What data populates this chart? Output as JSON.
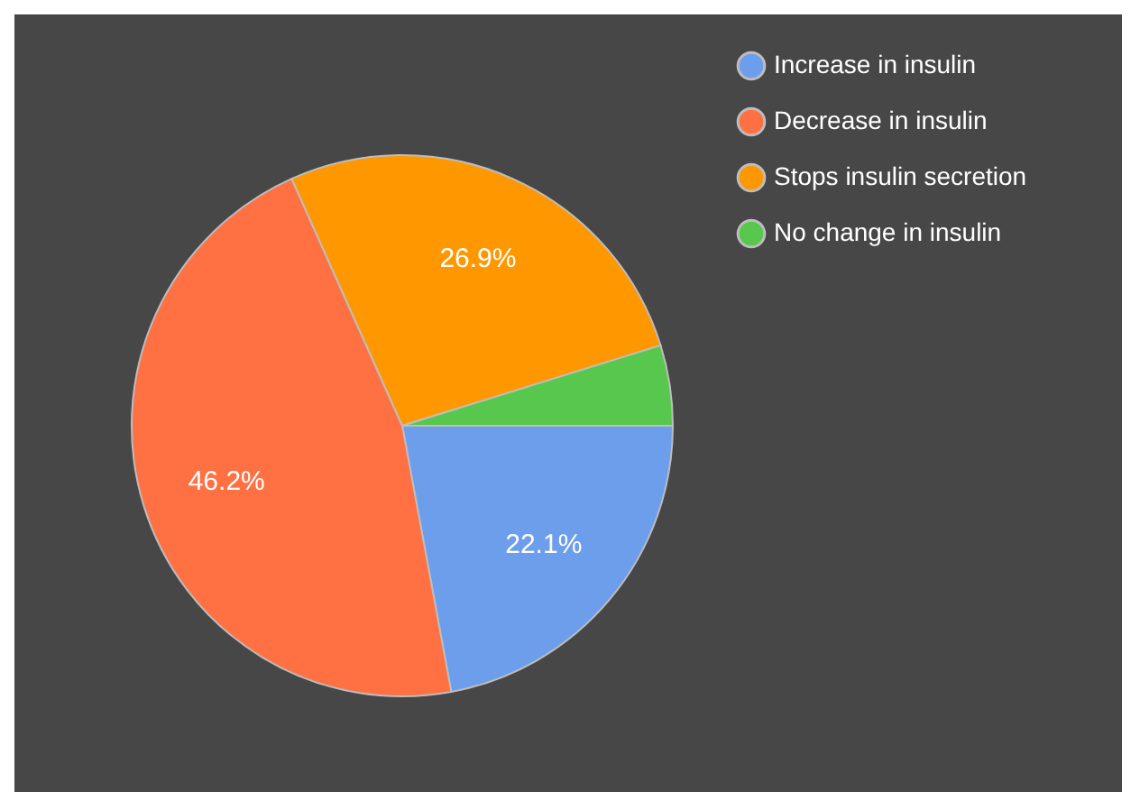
{
  "chart_data": {
    "type": "pie",
    "categories": [
      "Increase in insulin",
      "Decrease in insulin",
      "Stops insulin secretion",
      "No change in insulin"
    ],
    "values": [
      22.1,
      46.2,
      26.9,
      4.8
    ],
    "colors": [
      "#6d9eeb",
      "#ff7043",
      "#ff9800",
      "#57c84d"
    ],
    "value_labels": [
      "22.1%",
      "46.2%",
      "26.9%",
      null
    ],
    "legend": "top right"
  }
}
